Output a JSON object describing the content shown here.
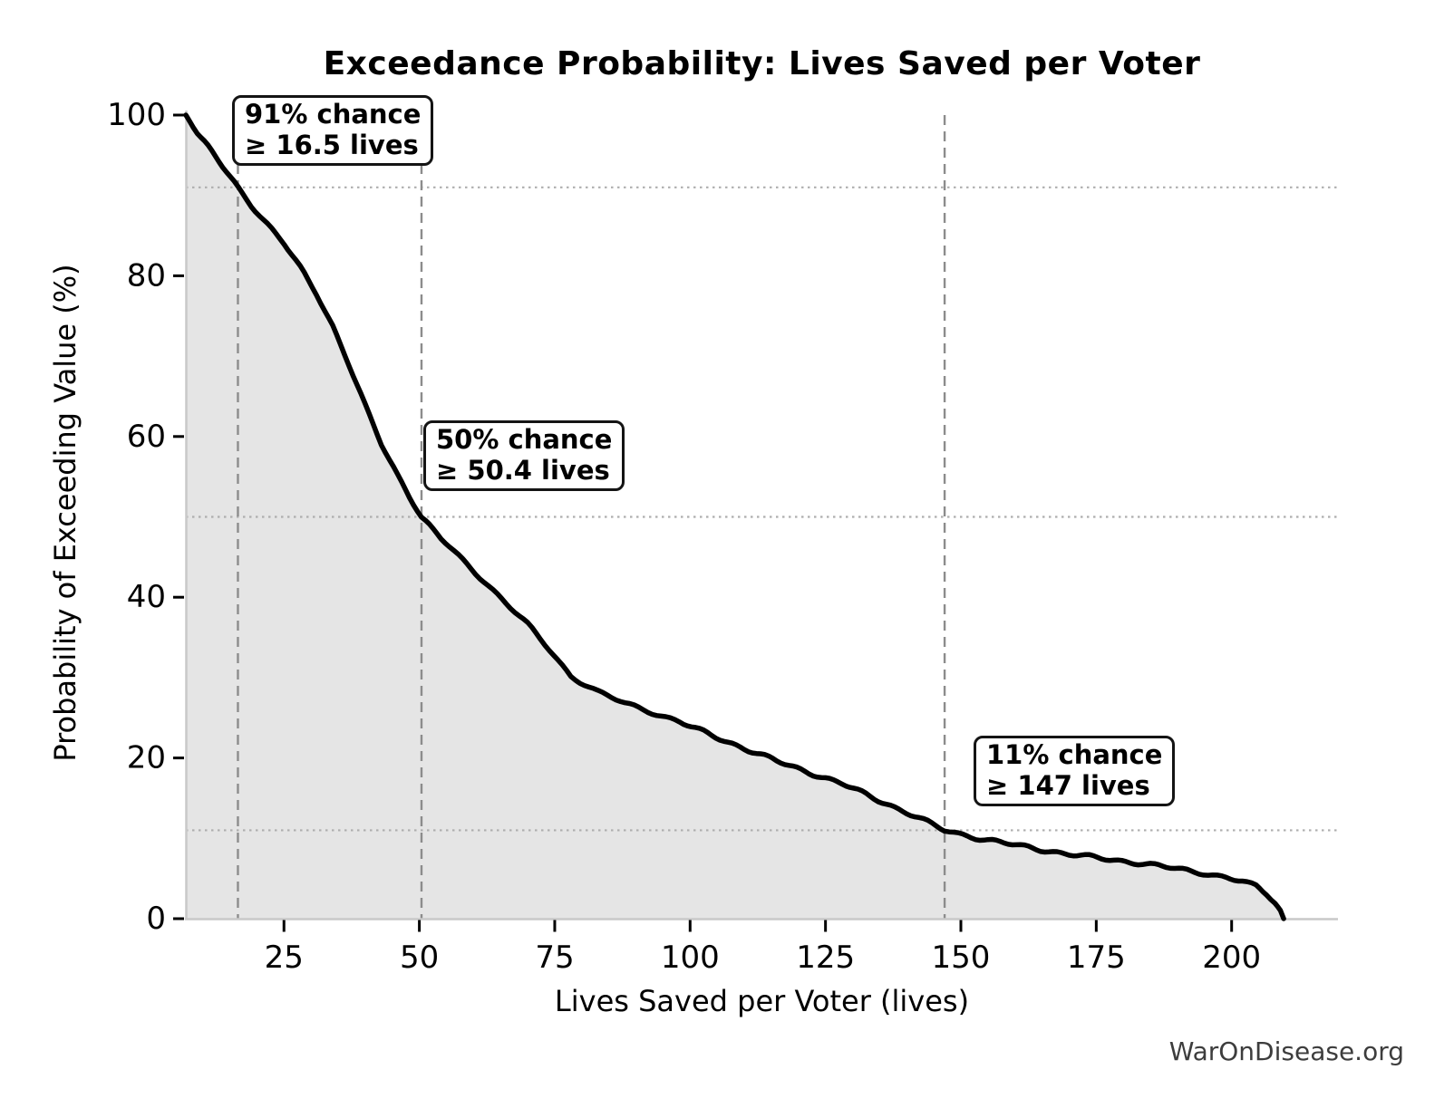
{
  "chart_data": {
    "type": "area",
    "title": "Exceedance Probability: Lives Saved per Voter",
    "xlabel": "Lives Saved per Voter (lives)",
    "ylabel": "Probability of Exceeding Value (%)",
    "xlim": [
      6.9,
      220
    ],
    "ylim": [
      0,
      100
    ],
    "x_ticks": [
      25,
      50,
      75,
      100,
      125,
      150,
      175,
      200
    ],
    "y_ticks": [
      0,
      20,
      40,
      60,
      80,
      100
    ],
    "grid": "off",
    "legend": "none",
    "line_color": "#000000",
    "fill_color": "#e5e5e5",
    "spine_color": "#c9c9c9",
    "dashed_guide_color": "#8c8c8c",
    "dotted_guide_color": "#aeaeae",
    "series": [
      {
        "name": "exceedance-curve",
        "points": [
          [
            6.9,
            100
          ],
          [
            9,
            97.8
          ],
          [
            11,
            96
          ],
          [
            13,
            94.2
          ],
          [
            16.5,
            91
          ],
          [
            19,
            88.8
          ],
          [
            22,
            86.4
          ],
          [
            25,
            84
          ],
          [
            28,
            81
          ],
          [
            31,
            77.8
          ],
          [
            34,
            73.8
          ],
          [
            37,
            69
          ],
          [
            40,
            63.8
          ],
          [
            43,
            59
          ],
          [
            46,
            55.2
          ],
          [
            50.4,
            50
          ],
          [
            54,
            47.3
          ],
          [
            58,
            44.6
          ],
          [
            62,
            42
          ],
          [
            66,
            39.3
          ],
          [
            70,
            36.6
          ],
          [
            74,
            33.5
          ],
          [
            78,
            30.2
          ],
          [
            83,
            28.2
          ],
          [
            88,
            26.8
          ],
          [
            93,
            25.7
          ],
          [
            98,
            24.5
          ],
          [
            104,
            22.8
          ],
          [
            110,
            21.2
          ],
          [
            116,
            19.6
          ],
          [
            122,
            18.2
          ],
          [
            128,
            16.8
          ],
          [
            134,
            15
          ],
          [
            140,
            13.2
          ],
          [
            147,
            11
          ],
          [
            152,
            10.2
          ],
          [
            158,
            9.4
          ],
          [
            164,
            8.7
          ],
          [
            170,
            8
          ],
          [
            176,
            7.5
          ],
          [
            182,
            7
          ],
          [
            188,
            6.4
          ],
          [
            194,
            5.8
          ],
          [
            199,
            5.1
          ],
          [
            202,
            4.6
          ],
          [
            204.5,
            4
          ],
          [
            206.5,
            3.1
          ],
          [
            208,
            2
          ],
          [
            209,
            1
          ],
          [
            209.6,
            0
          ]
        ]
      }
    ],
    "annotations": [
      {
        "line1": "91% chance",
        "line2": "≥ 16.5 lives",
        "x": 16.5,
        "probability_pct": 91
      },
      {
        "line1": "50% chance",
        "line2": "≥ 50.4 lives",
        "x": 50.4,
        "probability_pct": 50
      },
      {
        "line1": "11% chance",
        "line2": "≥ 147 lives",
        "x": 147,
        "probability_pct": 11
      }
    ],
    "watermark": "WarOnDisease.org"
  }
}
